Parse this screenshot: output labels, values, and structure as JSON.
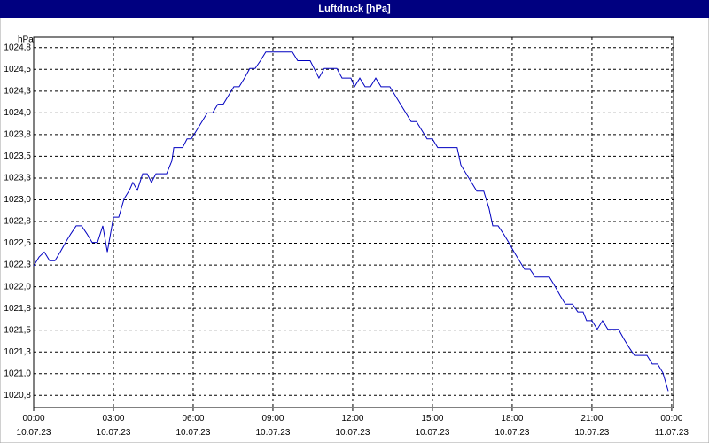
{
  "chart_data": {
    "type": "line",
    "title": "Luftdruck [hPa]",
    "ylabel": "hPa",
    "x": [
      0,
      0.2,
      0.4,
      0.6,
      0.8,
      1.0,
      1.2,
      1.4,
      1.6,
      1.8,
      2.0,
      2.2,
      2.4,
      2.6,
      2.77,
      3.0,
      3.2,
      3.4,
      3.6,
      3.73,
      3.9,
      4.1,
      4.27,
      4.43,
      4.6,
      4.8,
      5.0,
      5.2,
      5.27,
      5.6,
      5.77,
      5.93,
      6.13,
      6.33,
      6.53,
      6.73,
      6.93,
      7.13,
      7.33,
      7.53,
      7.73,
      7.93,
      8.13,
      8.33,
      8.53,
      8.73,
      8.93,
      9.13,
      9.73,
      9.93,
      10.4,
      10.73,
      10.93,
      11.4,
      11.6,
      11.93,
      12.07,
      12.27,
      12.47,
      12.67,
      12.87,
      13.07,
      13.4,
      13.6,
      13.8,
      14.0,
      14.2,
      14.4,
      14.6,
      14.8,
      15.0,
      15.2,
      15.4,
      15.93,
      16.07,
      16.27,
      16.47,
      16.67,
      16.93,
      17.13,
      17.27,
      17.47,
      17.67,
      17.87,
      18.07,
      18.27,
      18.47,
      18.67,
      18.87,
      19.4,
      19.6,
      19.8,
      20.0,
      20.27,
      20.47,
      20.67,
      20.8,
      21.0,
      21.2,
      21.4,
      21.6,
      22.0,
      22.2,
      22.4,
      22.6,
      23.07,
      23.27,
      23.47,
      23.67,
      23.87
    ],
    "series": [
      {
        "name": "Luftdruck",
        "color": "#0000c0",
        "values": [
          1022.24,
          1022.34,
          1022.4,
          1022.3,
          1022.3,
          1022.4,
          1022.51,
          1022.61,
          1022.7,
          1022.7,
          1022.61,
          1022.51,
          1022.51,
          1022.7,
          1022.4,
          1022.8,
          1022.8,
          1023.01,
          1023.11,
          1023.2,
          1023.11,
          1023.3,
          1023.3,
          1023.2,
          1023.3,
          1023.3,
          1023.3,
          1023.45,
          1023.6,
          1023.6,
          1023.7,
          1023.7,
          1023.8,
          1023.9,
          1024.0,
          1024.0,
          1024.1,
          1024.1,
          1024.2,
          1024.3,
          1024.3,
          1024.4,
          1024.51,
          1024.51,
          1024.6,
          1024.7,
          1024.7,
          1024.7,
          1024.7,
          1024.6,
          1024.6,
          1024.4,
          1024.51,
          1024.51,
          1024.4,
          1024.4,
          1024.3,
          1024.4,
          1024.3,
          1024.3,
          1024.4,
          1024.3,
          1024.3,
          1024.2,
          1024.1,
          1024.0,
          1023.9,
          1023.9,
          1023.8,
          1023.7,
          1023.7,
          1023.6,
          1023.6,
          1023.6,
          1023.4,
          1023.3,
          1023.2,
          1023.1,
          1023.1,
          1022.9,
          1022.7,
          1022.7,
          1022.61,
          1022.51,
          1022.4,
          1022.3,
          1022.2,
          1022.2,
          1022.11,
          1022.11,
          1022.01,
          1021.9,
          1021.8,
          1021.8,
          1021.71,
          1021.71,
          1021.61,
          1021.61,
          1021.51,
          1021.61,
          1021.51,
          1021.51,
          1021.4,
          1021.3,
          1021.21,
          1021.21,
          1021.11,
          1021.11,
          1021.01,
          1020.8
        ]
      }
    ],
    "xlim": [
      0,
      24.07
    ],
    "xticks": [
      {
        "value": 0,
        "label": "00:00\n10.07.23"
      },
      {
        "value": 3,
        "label": "03:00\n10.07.23"
      },
      {
        "value": 6,
        "label": "06:00\n10.07.23"
      },
      {
        "value": 9,
        "label": "09:00\n10.07.23"
      },
      {
        "value": 12,
        "label": "12:00\n10.07.23"
      },
      {
        "value": 15,
        "label": "15:00\n10.07.23"
      },
      {
        "value": 18,
        "label": "18:00\n10.07.23"
      },
      {
        "value": 21,
        "label": "21:00\n10.07.23"
      },
      {
        "value": 24,
        "label": "00:00\n11.07.23"
      }
    ],
    "ylim": [
      1020.61,
      1024.87
    ],
    "yticks": [
      {
        "value": 1020.75,
        "label": "1020,8"
      },
      {
        "value": 1021,
        "label": "1021,0"
      },
      {
        "value": 1021.25,
        "label": "1021,3"
      },
      {
        "value": 1021.5,
        "label": "1021,5"
      },
      {
        "value": 1021.75,
        "label": "1021,8"
      },
      {
        "value": 1022,
        "label": "1022,0"
      },
      {
        "value": 1022.25,
        "label": "1022,3"
      },
      {
        "value": 1022.5,
        "label": "1022,5"
      },
      {
        "value": 1022.75,
        "label": "1022,8"
      },
      {
        "value": 1023,
        "label": "1023,0"
      },
      {
        "value": 1023.25,
        "label": "1023,3"
      },
      {
        "value": 1023.5,
        "label": "1023,5"
      },
      {
        "value": 1023.75,
        "label": "1023,8"
      },
      {
        "value": 1024,
        "label": "1024,0"
      },
      {
        "value": 1024.25,
        "label": "1024,3"
      },
      {
        "value": 1024.5,
        "label": "1024,5"
      },
      {
        "value": 1024.75,
        "label": "1024,8"
      }
    ],
    "grid": true
  }
}
